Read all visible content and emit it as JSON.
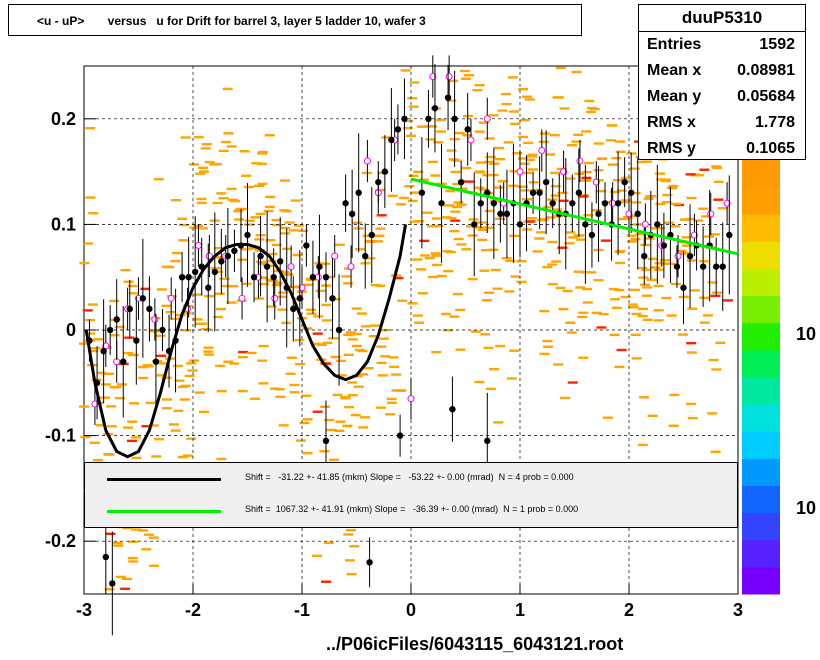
{
  "title": "<u - uP>       versus   u for Drift for barrel 3, layer 5 ladder 10, wafer 3",
  "stats": {
    "name": "duuP5310",
    "rows": [
      {
        "label": "Entries",
        "value": "1592"
      },
      {
        "label": "Mean x",
        "value": "0.08981"
      },
      {
        "label": "Mean y",
        "value": "0.05684"
      },
      {
        "label": "RMS x",
        "value": "1.778"
      },
      {
        "label": "RMS y",
        "value": "0.1065"
      }
    ]
  },
  "footer": "../P06icFiles/6043115_6043121.root",
  "legend": [
    {
      "color": "#000000",
      "text": "Shift =   -31.22 +- 41.85 (mkm) Slope =   -53.22 +- 0.00 (mrad)  N = 4 prob = 0.000"
    },
    {
      "color": "#00ee00",
      "text": "Shift =  1067.32 +- 41.91 (mkm) Slope =   -36.39 +- 0.00 (mrad)  N = 1 prob = 0.000"
    }
  ],
  "colors": {
    "hist": "#ffa500",
    "hist_hot": "#ff2200",
    "profile": "#000000",
    "open_marker": "#ff00ff",
    "fit1": "#000000",
    "fit2": "#00ee00"
  },
  "chart_data": {
    "type": "scatter",
    "title": "<u - uP>       versus   u for Drift for barrel 3, layer 5 ladder 10, wafer 3",
    "xlim": [
      -3,
      3
    ],
    "ylim": [
      -0.25,
      0.25
    ],
    "xticks": [
      "-3",
      "-2",
      "-1",
      "0",
      "1",
      "2",
      "3"
    ],
    "yticks": [
      "-0.2",
      "-0.1",
      "0",
      "0.1",
      "0.2"
    ],
    "xtick_values": [
      -3,
      -2,
      -1,
      0,
      1,
      2,
      3
    ],
    "ytick_values": [
      -0.2,
      -0.1,
      0,
      0.1,
      0.2
    ],
    "grid": true,
    "palette_labels": [
      "10",
      "10"
    ],
    "profile": [
      [
        -2.95,
        -0.01
      ],
      [
        -2.88,
        -0.05
      ],
      [
        -2.82,
        -0.02
      ],
      [
        -2.76,
        0.0
      ],
      [
        -2.7,
        0.01
      ],
      [
        -2.64,
        -0.03
      ],
      [
        -2.58,
        0.02
      ],
      [
        -2.52,
        -0.01
      ],
      [
        -2.46,
        0.03
      ],
      [
        -2.4,
        0.02
      ],
      [
        -2.34,
        -0.03
      ],
      [
        -2.28,
        0.0
      ],
      [
        -2.22,
        -0.02
      ],
      [
        -2.16,
        -0.01
      ],
      [
        -2.1,
        0.05
      ],
      [
        -2.04,
        0.05
      ],
      [
        -1.98,
        0.055
      ],
      [
        -1.92,
        0.06
      ],
      [
        -1.86,
        0.04
      ],
      [
        -1.8,
        0.055
      ],
      [
        -1.74,
        0.065
      ],
      [
        -1.68,
        0.07
      ],
      [
        -1.62,
        0.075
      ],
      [
        -1.56,
        0.08
      ],
      [
        -1.5,
        0.09
      ],
      [
        -1.44,
        0.05
      ],
      [
        -1.38,
        0.07
      ],
      [
        -1.32,
        0.06
      ],
      [
        -1.26,
        0.05
      ],
      [
        -1.2,
        0.065
      ],
      [
        -1.14,
        0.04
      ],
      [
        -1.08,
        0.02
      ],
      [
        -1.02,
        0.03
      ],
      [
        -0.96,
        0.08
      ],
      [
        -0.9,
        0.05
      ],
      [
        -0.84,
        0.06
      ],
      [
        -0.78,
        0.05
      ],
      [
        -0.72,
        0.03
      ],
      [
        -0.66,
        0.0
      ],
      [
        -0.6,
        0.12
      ],
      [
        -0.54,
        0.11
      ],
      [
        -0.48,
        0.13
      ],
      [
        -0.42,
        0.07
      ],
      [
        -0.36,
        0.09
      ],
      [
        -0.3,
        0.14
      ],
      [
        -0.24,
        0.15
      ],
      [
        -0.18,
        0.18
      ],
      [
        -0.12,
        0.19
      ],
      [
        -0.06,
        0.2
      ],
      [
        0.1,
        0.13
      ],
      [
        0.16,
        0.2
      ],
      [
        0.22,
        0.21
      ],
      [
        0.28,
        0.12
      ],
      [
        0.34,
        0.22
      ],
      [
        0.4,
        0.2
      ],
      [
        0.46,
        0.14
      ],
      [
        0.52,
        0.19
      ],
      [
        0.58,
        0.1
      ],
      [
        0.64,
        0.12
      ],
      [
        0.7,
        0.13
      ],
      [
        0.76,
        0.12
      ],
      [
        0.82,
        0.11
      ],
      [
        0.88,
        0.11
      ],
      [
        0.94,
        0.12
      ],
      [
        1.0,
        0.1
      ],
      [
        1.06,
        0.12
      ],
      [
        1.12,
        0.13
      ],
      [
        1.18,
        0.13
      ],
      [
        1.24,
        0.14
      ],
      [
        1.3,
        0.12
      ],
      [
        1.36,
        0.11
      ],
      [
        1.42,
        0.11
      ],
      [
        1.48,
        0.12
      ],
      [
        1.54,
        0.13
      ],
      [
        1.6,
        0.1
      ],
      [
        1.66,
        0.09
      ],
      [
        1.72,
        0.11
      ],
      [
        1.78,
        0.12
      ],
      [
        1.84,
        0.1
      ],
      [
        1.9,
        0.12
      ],
      [
        1.96,
        0.14
      ],
      [
        2.02,
        0.13
      ],
      [
        2.08,
        0.11
      ],
      [
        2.14,
        0.07
      ],
      [
        2.2,
        0.09
      ],
      [
        2.26,
        0.1
      ],
      [
        2.32,
        0.08
      ],
      [
        2.38,
        0.09
      ],
      [
        2.44,
        0.06
      ],
      [
        2.5,
        0.04
      ],
      [
        2.56,
        0.07
      ],
      [
        2.62,
        0.08
      ],
      [
        2.68,
        0.06
      ],
      [
        2.74,
        0.08
      ],
      [
        2.8,
        0.06
      ],
      [
        2.86,
        0.06
      ],
      [
        2.92,
        0.09
      ],
      [
        0.38,
        -0.075
      ],
      [
        0.7,
        -0.105
      ],
      [
        -0.1,
        -0.1
      ],
      [
        -2.8,
        -0.215
      ],
      [
        -2.74,
        -0.24
      ],
      [
        -0.38,
        -0.22
      ],
      [
        -0.78,
        -0.105
      ]
    ],
    "open_points": [
      [
        -2.9,
        -0.07
      ],
      [
        -2.8,
        -0.015
      ],
      [
        -2.7,
        -0.03
      ],
      [
        -2.6,
        0.02
      ],
      [
        -2.5,
        0.03
      ],
      [
        -2.35,
        0.01
      ],
      [
        -2.2,
        0.03
      ],
      [
        -2.05,
        0.02
      ],
      [
        -1.95,
        0.08
      ],
      [
        -1.85,
        0.07
      ],
      [
        -1.7,
        0.07
      ],
      [
        -1.55,
        0.03
      ],
      [
        -1.4,
        0.05
      ],
      [
        -1.25,
        0.03
      ],
      [
        -1.1,
        0.06
      ],
      [
        -1.0,
        0.04
      ],
      [
        -0.85,
        0.05
      ],
      [
        -0.7,
        0.07
      ],
      [
        -0.55,
        0.06
      ],
      [
        -0.4,
        0.16
      ],
      [
        -0.3,
        0.13
      ],
      [
        -0.15,
        0.18
      ],
      [
        0.0,
        -0.065
      ],
      [
        0.2,
        0.24
      ],
      [
        0.35,
        0.24
      ],
      [
        0.55,
        0.18
      ],
      [
        0.7,
        0.2
      ],
      [
        0.85,
        0.12
      ],
      [
        1.0,
        0.15
      ],
      [
        1.2,
        0.17
      ],
      [
        1.4,
        0.15
      ],
      [
        1.55,
        0.16
      ],
      [
        1.7,
        0.14
      ],
      [
        1.85,
        0.12
      ],
      [
        2.0,
        0.11
      ],
      [
        2.15,
        0.1
      ],
      [
        2.3,
        0.08
      ],
      [
        2.45,
        0.07
      ],
      [
        2.6,
        0.09
      ],
      [
        2.75,
        0.11
      ],
      [
        2.9,
        0.12
      ]
    ],
    "fit_curve": [
      [
        -2.98,
        -0.0
      ],
      [
        -2.9,
        -0.05
      ],
      [
        -2.8,
        -0.095
      ],
      [
        -2.7,
        -0.115
      ],
      [
        -2.6,
        -0.12
      ],
      [
        -2.5,
        -0.115
      ],
      [
        -2.4,
        -0.095
      ],
      [
        -2.3,
        -0.06
      ],
      [
        -2.2,
        -0.02
      ],
      [
        -2.1,
        0.015
      ],
      [
        -2.0,
        0.04
      ],
      [
        -1.9,
        0.058
      ],
      [
        -1.8,
        0.07
      ],
      [
        -1.7,
        0.078
      ],
      [
        -1.6,
        0.081
      ],
      [
        -1.5,
        0.081
      ],
      [
        -1.4,
        0.078
      ],
      [
        -1.3,
        0.07
      ],
      [
        -1.2,
        0.055
      ],
      [
        -1.1,
        0.035
      ],
      [
        -1.0,
        0.01
      ],
      [
        -0.9,
        -0.015
      ],
      [
        -0.8,
        -0.032
      ],
      [
        -0.7,
        -0.043
      ],
      [
        -0.6,
        -0.047
      ],
      [
        -0.5,
        -0.043
      ],
      [
        -0.4,
        -0.03
      ],
      [
        -0.3,
        -0.005
      ],
      [
        -0.2,
        0.03
      ],
      [
        -0.1,
        0.07
      ],
      [
        -0.05,
        0.1
      ]
    ],
    "fit_line": [
      [
        0.0,
        0.143
      ],
      [
        3.0,
        0.072
      ]
    ]
  }
}
